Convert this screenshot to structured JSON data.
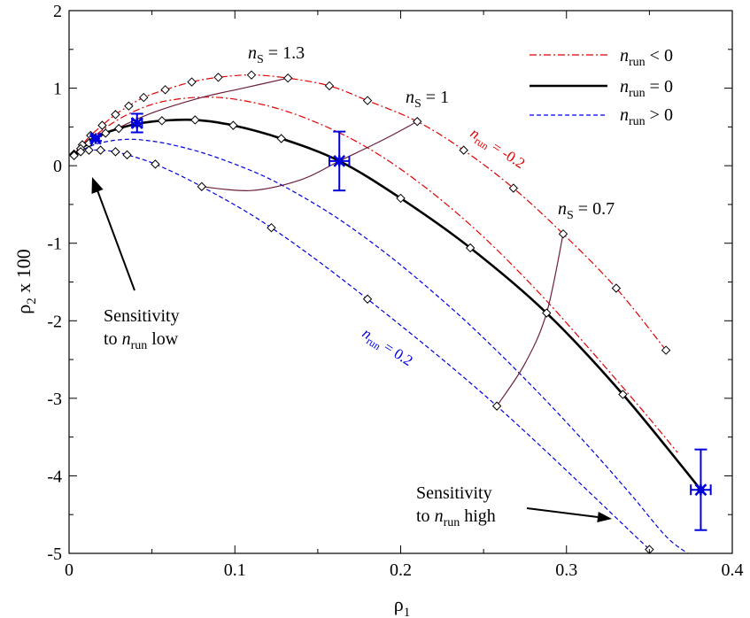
{
  "chart_data": {
    "type": "line",
    "xlabel": "ρ",
    "xlabel_sub": "1",
    "ylabel": "ρ",
    "ylabel_sub": "2",
    "ylabel_suffix": " x 100",
    "xlim": [
      0,
      0.4
    ],
    "ylim": [
      -5,
      2
    ],
    "xticks": [
      0,
      0.1,
      0.2,
      0.3,
      0.4
    ],
    "xtick_labels": [
      "0",
      "0.1",
      "0.2",
      "0.3",
      "0.4"
    ],
    "yticks": [
      -5,
      -4,
      -3,
      -2,
      -1,
      0,
      1,
      2
    ],
    "ytick_labels": [
      "-5",
      "-4",
      "-3",
      "-2",
      "-1",
      "0",
      "1",
      "2"
    ],
    "grid": false,
    "legend_position": "top-right",
    "legend": [
      {
        "style": "dashdot",
        "color": "#e00000",
        "prefix": "n",
        "sub": "run",
        "suffix": " < 0"
      },
      {
        "style": "solid",
        "color": "#000000",
        "prefix": "n",
        "sub": "run",
        "suffix": " = 0"
      },
      {
        "style": "dashed",
        "color": "#0000e0",
        "prefix": "n",
        "sub": "run",
        "suffix": " > 0"
      }
    ],
    "series": [
      {
        "color": "#e00000",
        "style": "dashdot",
        "markers": true,
        "x": [
          0.003,
          0.008,
          0.013,
          0.02,
          0.028,
          0.036,
          0.045,
          0.058,
          0.074,
          0.09,
          0.11,
          0.132,
          0.157,
          0.18,
          0.21,
          0.238,
          0.268,
          0.298,
          0.33,
          0.36
        ],
        "y": [
          0.15,
          0.27,
          0.39,
          0.52,
          0.66,
          0.77,
          0.88,
          0.98,
          1.08,
          1.14,
          1.17,
          1.13,
          1.03,
          0.84,
          0.57,
          0.2,
          -0.29,
          -0.88,
          -1.58,
          -2.38
        ]
      },
      {
        "color": "#e00000",
        "style": "dashdot",
        "markers": false,
        "x": [
          0.01,
          0.03,
          0.05,
          0.07,
          0.09,
          0.11,
          0.13,
          0.15,
          0.17,
          0.19,
          0.21,
          0.23,
          0.25,
          0.27,
          0.29,
          0.31,
          0.33,
          0.35,
          0.367
        ],
        "y": [
          0.3,
          0.6,
          0.79,
          0.87,
          0.88,
          0.82,
          0.71,
          0.55,
          0.35,
          0.1,
          -0.2,
          -0.54,
          -0.92,
          -1.34,
          -1.79,
          -2.27,
          -2.76,
          -3.26,
          -3.7
        ]
      },
      {
        "color": "#000000",
        "style": "solid",
        "markers": true,
        "x": [
          0.003,
          0.007,
          0.012,
          0.016,
          0.022,
          0.03,
          0.041,
          0.056,
          0.076,
          0.099,
          0.128,
          0.163,
          0.2,
          0.242,
          0.288,
          0.334,
          0.381
        ],
        "y": [
          0.14,
          0.22,
          0.29,
          0.35,
          0.42,
          0.48,
          0.54,
          0.58,
          0.59,
          0.52,
          0.35,
          0.06,
          -0.42,
          -1.06,
          -1.9,
          -2.95,
          -4.18
        ]
      },
      {
        "color": "#0000e0",
        "style": "dashed",
        "markers": false,
        "x": [
          0.005,
          0.015,
          0.025,
          0.035,
          0.045,
          0.06,
          0.08,
          0.1,
          0.12,
          0.14,
          0.16,
          0.18,
          0.2,
          0.22,
          0.24,
          0.26,
          0.28,
          0.3,
          0.32,
          0.34,
          0.36,
          0.373
        ],
        "y": [
          0.17,
          0.27,
          0.32,
          0.34,
          0.33,
          0.28,
          0.17,
          0.02,
          -0.16,
          -0.39,
          -0.65,
          -0.95,
          -1.28,
          -1.64,
          -2.02,
          -2.43,
          -2.86,
          -3.31,
          -3.78,
          -4.27,
          -4.78,
          -5.0
        ]
      },
      {
        "color": "#0000e0",
        "style": "dashed",
        "markers": true,
        "x": [
          0.003,
          0.007,
          0.012,
          0.019,
          0.028,
          0.035,
          0.052,
          0.08,
          0.122,
          0.18,
          0.258,
          0.35
        ],
        "y": [
          0.13,
          0.18,
          0.2,
          0.2,
          0.18,
          0.14,
          0.02,
          -0.27,
          -0.8,
          -1.72,
          -3.1,
          -4.95
        ]
      }
    ],
    "ns_curves": [
      {
        "label": "n",
        "sub": "S",
        "value": " = 1.3",
        "color": "#6b1f3e",
        "x": [
          0.028,
          0.05,
          0.08,
          0.105,
          0.132
        ],
        "y": [
          0.47,
          0.68,
          0.88,
          1.0,
          1.13
        ]
      },
      {
        "label": "n",
        "sub": "S",
        "value": " = 1",
        "color": "#6b1f3e",
        "x": [
          0.08,
          0.11,
          0.14,
          0.163,
          0.19,
          0.21
        ],
        "y": [
          -0.27,
          -0.32,
          -0.18,
          0.06,
          0.34,
          0.57
        ]
      },
      {
        "label": "n",
        "sub": "S",
        "value": " = 0.7",
        "color": "#6b1f3e",
        "x": [
          0.258,
          0.275,
          0.288,
          0.298
        ],
        "y": [
          -3.1,
          -2.55,
          -1.9,
          -0.88
        ]
      }
    ],
    "error_points": [
      {
        "x": 0.016,
        "y": 0.35,
        "xerr": 0.002,
        "yerr": 0.03,
        "color": "#0000dd"
      },
      {
        "x": 0.041,
        "y": 0.55,
        "xerr": 0.003,
        "yerr": 0.12,
        "color": "#0000dd"
      },
      {
        "x": 0.163,
        "y": 0.06,
        "xerr": 0.006,
        "yerr": 0.38,
        "color": "#0000dd"
      },
      {
        "x": 0.381,
        "y": -4.18,
        "xerr": 0.006,
        "yerr": 0.52,
        "color": "#0000dd"
      }
    ],
    "annotations": {
      "nrun_neg_label": {
        "prefix": "n",
        "sub": "run",
        "suffix": " = -0.2",
        "color": "#e00000"
      },
      "nrun_pos_label": {
        "prefix": "n",
        "sub": "run",
        "suffix": " = 0.2",
        "color": "#0000e0"
      },
      "sens_low_line1": "Sensitivity",
      "sens_low_line2_prefix": "to ",
      "sens_low_line2_n": "n",
      "sens_low_line2_sub": "run",
      "sens_low_line2_suffix": " low",
      "sens_high_line1": "Sensitivity",
      "sens_high_line2_prefix": "to ",
      "sens_high_line2_n": "n",
      "sens_high_line2_sub": "run",
      "sens_high_line2_suffix": " high"
    }
  }
}
